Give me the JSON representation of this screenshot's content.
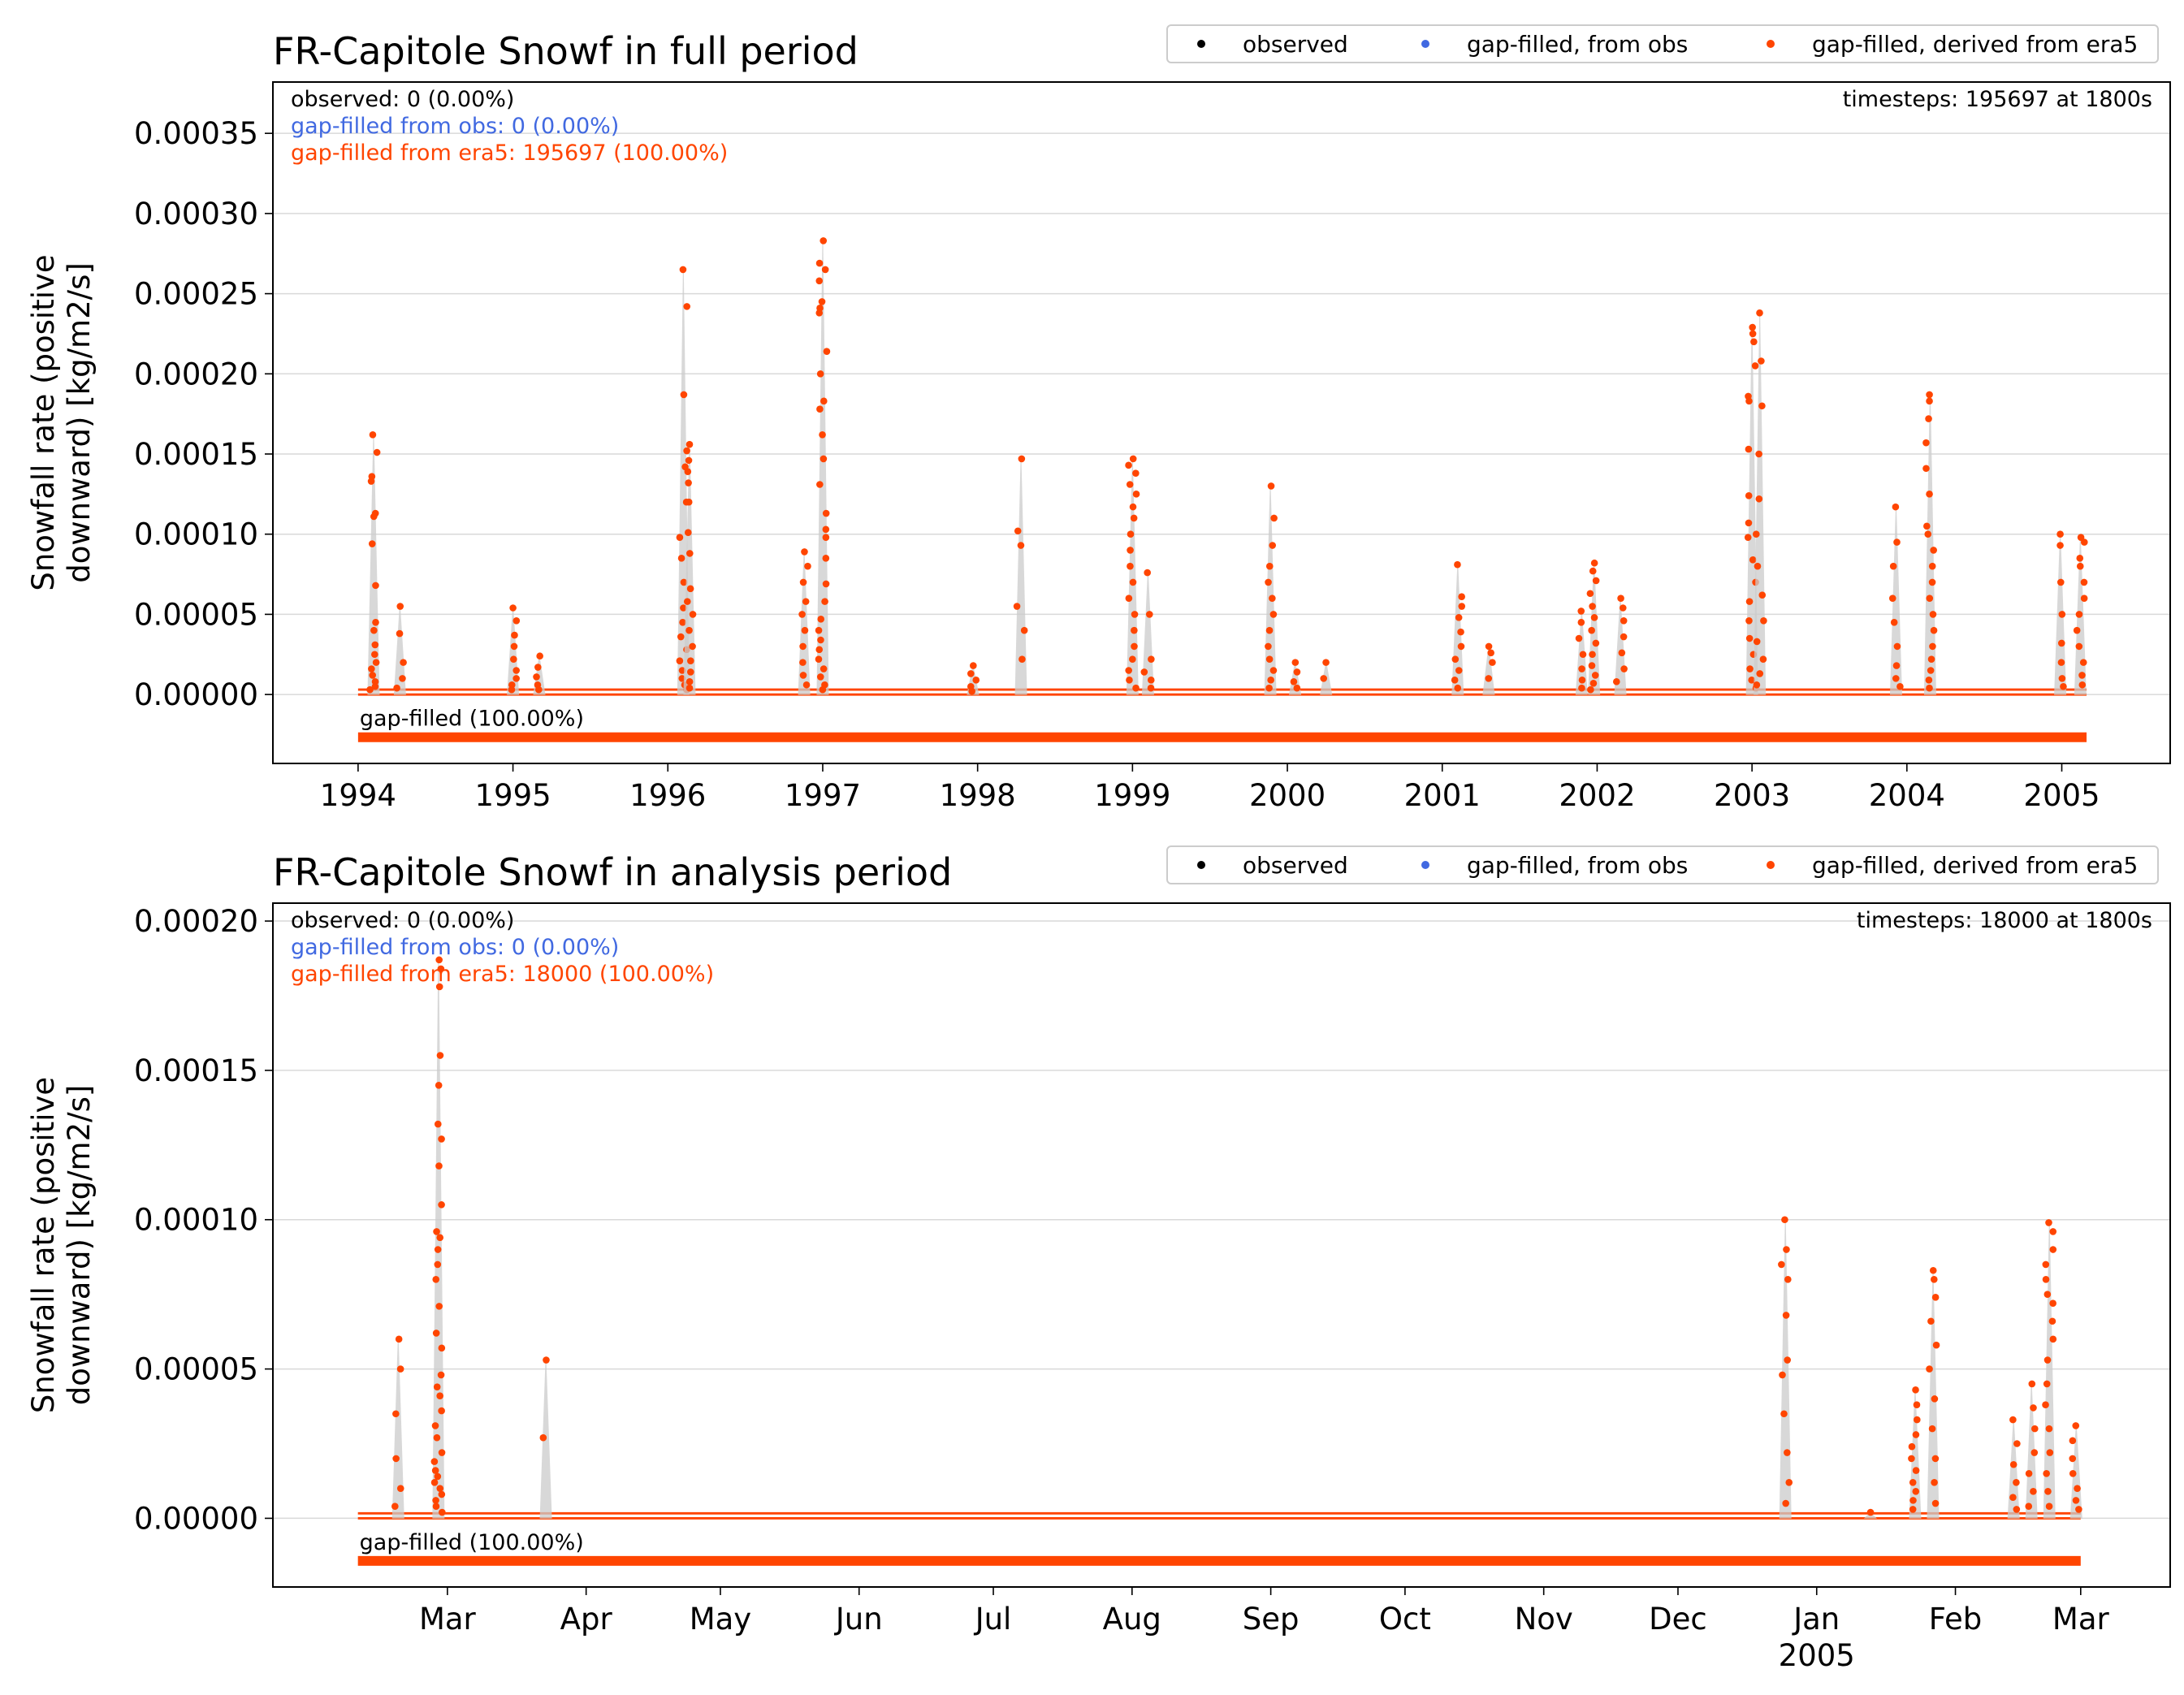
{
  "colors": {
    "observed": "#000000",
    "gapfilled_obs": "#4169e1",
    "gapfilled_era5": "#ff4500",
    "grid": "#d9d9d9",
    "trace": "#cccccc"
  },
  "legend_labels": [
    "observed",
    "gap-filled, from obs",
    "gap-filled, derived from era5"
  ],
  "chart_data": [
    {
      "type": "scatter",
      "title": "FR-Capitole Snowf in full period",
      "ylabel_lines": [
        "Snowfall rate (positive",
        "downward) [kg/m2/s]"
      ],
      "xlabel": "",
      "ylim": [
        -4.3e-05,
        0.000382
      ],
      "yticks": [
        0,
        5e-05,
        0.0001,
        0.00015,
        0.0002,
        0.00025,
        0.0003,
        0.00035
      ],
      "ytick_labels": [
        "0.00000",
        "0.00005",
        "0.00010",
        "0.00015",
        "0.00020",
        "0.00025",
        "0.00030",
        "0.00035"
      ],
      "xlim": [
        1993.45,
        2005.7
      ],
      "xticks": [
        1994,
        1995,
        1996,
        1997,
        1998,
        1999,
        2000,
        2001,
        2002,
        2003,
        2004,
        2005
      ],
      "xtick_labels": [
        "1994",
        "1995",
        "1996",
        "1997",
        "1998",
        "1999",
        "2000",
        "2001",
        "2002",
        "2003",
        "2004",
        "2005"
      ],
      "data_range": [
        1994.0,
        2005.16
      ],
      "grid": "horizontal",
      "legend_placement": "top-right",
      "annotations": {
        "observed": "observed: 0 (0.00%)",
        "gapfilled_obs": "gap-filled from obs: 0 (0.00%)",
        "gapfilled_era5": "gap-filled from era5: 195697 (100.00%)",
        "timesteps": "timesteps: 195697 at 1800s",
        "bar_label": "gap-filled (100.00%)"
      },
      "series": [
        {
          "name": "gap-filled, derived from era5",
          "bursts": [
            {
              "x": 1994.1,
              "values": [
                0.000162,
                0.000151,
                0.000136,
                0.000133,
                0.000113,
                0.000111,
                9.4e-05,
                6.8e-05,
                4.5e-05,
                4e-05,
                3.1e-05,
                2.5e-05,
                2e-05,
                1.6e-05,
                1.2e-05,
                8e-06,
                5e-06,
                3e-06
              ]
            },
            {
              "x": 1994.27,
              "values": [
                5.5e-05,
                3.8e-05,
                2e-05,
                1e-05,
                4e-06
              ]
            },
            {
              "x": 1995.0,
              "values": [
                5.4e-05,
                4.6e-05,
                3.7e-05,
                3e-05,
                2.2e-05,
                1.5e-05,
                1e-05,
                6e-06,
                3e-06
              ]
            },
            {
              "x": 1995.17,
              "values": [
                2.4e-05,
                1.7e-05,
                1.1e-05,
                6e-06,
                3e-06
              ]
            },
            {
              "x": 1996.1,
              "values": [
                0.000265,
                0.000242,
                0.000187,
                0.000142,
                0.00012,
                9.8e-05,
                8.5e-05,
                7e-05,
                5.4e-05,
                4.5e-05,
                3.6e-05,
                2.8e-05,
                2.1e-05,
                1.5e-05,
                1e-05,
                6e-06,
                3e-06
              ]
            },
            {
              "x": 1996.14,
              "values": [
                0.000156,
                0.000152,
                0.000146,
                0.000139,
                0.000132,
                0.00012,
                0.000101,
                8.8e-05,
                6.6e-05,
                5.8e-05,
                5e-05,
                4e-05,
                3e-05,
                2.1e-05,
                1.4e-05,
                8e-06,
                4e-06
              ]
            },
            {
              "x": 1996.88,
              "values": [
                8.9e-05,
                8e-05,
                7e-05,
                5.8e-05,
                5e-05,
                4e-05,
                3e-05,
                2e-05,
                1.2e-05,
                6e-06
              ]
            },
            {
              "x": 1997.0,
              "values": [
                0.000283,
                0.000269,
                0.000265,
                0.000258,
                0.000245,
                0.000241,
                0.000238,
                0.000214,
                0.0002,
                0.000183,
                0.000178,
                0.000162,
                0.000147,
                0.000131,
                0.000113,
                0.000103,
                9.8e-05,
                8.5e-05,
                6.9e-05,
                5.8e-05,
                4.7e-05,
                4e-05,
                3.4e-05,
                2.8e-05,
                2.2e-05,
                1.6e-05,
                1.1e-05,
                6e-06,
                3e-06
              ]
            },
            {
              "x": 1997.97,
              "values": [
                1.8e-05,
                1.3e-05,
                9e-06,
                5e-06,
                2e-06
              ]
            },
            {
              "x": 1998.28,
              "values": [
                0.000147,
                0.000102,
                9.3e-05,
                5.5e-05,
                4e-05,
                2.2e-05
              ]
            },
            {
              "x": 1999.0,
              "values": [
                0.000147,
                0.000143,
                0.000138,
                0.000131,
                0.000125,
                0.000117,
                0.00011,
                0.0001,
                9e-05,
                8e-05,
                7e-05,
                6e-05,
                5e-05,
                4e-05,
                3e-05,
                2.2e-05,
                1.5e-05,
                9e-06,
                4e-06
              ]
            },
            {
              "x": 1999.1,
              "values": [
                7.6e-05,
                5e-05,
                2.2e-05,
                1.4e-05,
                9e-06,
                4e-06
              ]
            },
            {
              "x": 1999.89,
              "values": [
                0.00013,
                0.00011,
                9.3e-05,
                8e-05,
                7e-05,
                6e-05,
                5e-05,
                4e-05,
                3e-05,
                2.2e-05,
                1.5e-05,
                9e-06,
                4e-06
              ]
            },
            {
              "x": 2000.05,
              "values": [
                2e-05,
                1.4e-05,
                8e-06,
                4e-06
              ]
            },
            {
              "x": 2000.25,
              "values": [
                2e-05,
                1e-05
              ]
            },
            {
              "x": 2001.1,
              "values": [
                8.1e-05,
                6.1e-05,
                5.5e-05,
                4.8e-05,
                3.9e-05,
                3e-05,
                2.2e-05,
                1.5e-05,
                9e-06,
                4e-06
              ]
            },
            {
              "x": 2001.3,
              "values": [
                3e-05,
                2.6e-05,
                2e-05,
                1e-05
              ]
            },
            {
              "x": 2001.9,
              "values": [
                5.2e-05,
                4.5e-05,
                3.5e-05,
                2.5e-05,
                1.6e-05,
                9e-06,
                4e-06
              ]
            },
            {
              "x": 2001.98,
              "values": [
                8.2e-05,
                7.7e-05,
                7.1e-05,
                6.3e-05,
                5.5e-05,
                4.8e-05,
                4e-05,
                3.2e-05,
                2.5e-05,
                1.8e-05,
                1.2e-05,
                7e-06,
                3e-06
              ]
            },
            {
              "x": 2002.15,
              "values": [
                6e-05,
                5.4e-05,
                4.6e-05,
                3.6e-05,
                2.6e-05,
                1.6e-05,
                8e-06
              ]
            },
            {
              "x": 2003.0,
              "values": [
                0.000229,
                0.000225,
                0.00022,
                0.000205,
                0.000186,
                0.000183,
                0.000153,
                0.000124,
                0.000107,
                9.8e-05,
                8.4e-05,
                7e-05,
                5.8e-05,
                4.6e-05,
                3.5e-05,
                2.5e-05,
                1.6e-05,
                9e-06,
                4e-06
              ]
            },
            {
              "x": 2003.05,
              "values": [
                0.000238,
                0.000208,
                0.00018,
                0.00015,
                0.000122,
                0.0001,
                8e-05,
                6.2e-05,
                4.6e-05,
                3.3e-05,
                2.2e-05,
                1.3e-05,
                6e-06
              ]
            },
            {
              "x": 2003.93,
              "values": [
                0.000117,
                9.5e-05,
                8e-05,
                6e-05,
                4.5e-05,
                3e-05,
                1.8e-05,
                1e-05,
                5e-06
              ]
            },
            {
              "x": 2004.15,
              "values": [
                0.000187,
                0.000183,
                0.000172,
                0.000157,
                0.000141,
                0.000125,
                0.000105,
                0.0001,
                9e-05,
                8e-05,
                7e-05,
                6e-05,
                5e-05,
                4e-05,
                3e-05,
                2.2e-05,
                1.5e-05,
                9e-06,
                4e-06
              ]
            },
            {
              "x": 2004.99,
              "values": [
                0.0001,
                9.3e-05,
                7e-05,
                5e-05,
                3.2e-05,
                2e-05,
                1e-05,
                5e-06
              ]
            },
            {
              "x": 2005.12,
              "values": [
                9.8e-05,
                9.5e-05,
                8.5e-05,
                8e-05,
                7e-05,
                6e-05,
                5e-05,
                4e-05,
                3e-05,
                2e-05,
                1.2e-05,
                6e-06
              ]
            }
          ]
        }
      ]
    },
    {
      "type": "scatter",
      "title": "FR-Capitole Snowf in analysis period",
      "ylabel_lines": [
        "Snowfall rate (positive",
        "downward) [kg/m2/s]"
      ],
      "xlabel": "",
      "ylim": [
        -2.3e-05,
        0.000206
      ],
      "yticks": [
        0,
        5e-05,
        0.0001,
        0.00015,
        0.0002
      ],
      "ytick_labels": [
        "0.00000",
        "0.00005",
        "0.00010",
        "0.00015",
        "0.00020"
      ],
      "xlim": [
        "2004-01-22",
        "2005-03-21"
      ],
      "xticks": [
        "2004-03-01",
        "2004-04-01",
        "2004-05-01",
        "2004-06-01",
        "2004-07-01",
        "2004-08-01",
        "2004-09-01",
        "2004-10-01",
        "2004-11-01",
        "2004-12-01",
        "2005-01-01",
        "2005-02-01",
        "2005-03-01"
      ],
      "xtick_labels": [
        "Mar",
        "Apr",
        "May",
        "Jun",
        "Jul",
        "Aug",
        "Sep",
        "Oct",
        "Nov",
        "Dec",
        "Jan",
        "Feb",
        "Mar"
      ],
      "xtick_sublabel": {
        "index": 10,
        "text": "2005"
      },
      "data_range": [
        "2004-02-10",
        "2005-03-01"
      ],
      "grid": "horizontal",
      "legend_placement": "top-right",
      "annotations": {
        "observed": "observed: 0 (0.00%)",
        "gapfilled_obs": "gap-filled from obs: 0 (0.00%)",
        "gapfilled_era5": "gap-filled from era5: 18000 (100.00%)",
        "timesteps": "timesteps: 18000 at 1800s",
        "bar_label": "gap-filled (100.00%)"
      },
      "series": [
        {
          "name": "gap-filled, derived from era5",
          "bursts": [
            {
              "x": "2004-02-19",
              "values": [
                6e-05,
                5e-05,
                3.5e-05,
                2e-05,
                1e-05,
                4e-06
              ]
            },
            {
              "x": "2004-02-28",
              "values": [
                0.000187,
                0.000184,
                0.000178,
                0.000155,
                0.000145,
                0.000132,
                0.000127,
                0.000118,
                0.000105,
                9.6e-05,
                9.4e-05,
                9e-05,
                8.5e-05,
                8e-05,
                7.1e-05,
                6.2e-05,
                5.7e-05,
                4.8e-05,
                4.4e-05,
                4.1e-05,
                3.6e-05,
                3.1e-05,
                2.7e-05,
                2.2e-05,
                1.9e-05,
                1.6e-05,
                1.4e-05,
                1.2e-05,
                1e-05,
                8e-06,
                6e-06,
                4e-06,
                2e-06
              ]
            },
            {
              "x": "2004-03-23",
              "values": [
                5.3e-05,
                2.7e-05
              ]
            },
            {
              "x": "2004-12-25",
              "values": [
                0.0001,
                9e-05,
                8.5e-05,
                8e-05,
                6.8e-05,
                5.3e-05,
                4.8e-05,
                3.5e-05,
                2.2e-05,
                1.2e-05,
                5e-06
              ]
            },
            {
              "x": "2005-01-13",
              "values": [
                2e-06
              ]
            },
            {
              "x": "2005-01-23",
              "values": [
                4.3e-05,
                3.8e-05,
                3.3e-05,
                2.8e-05,
                2.4e-05,
                2e-05,
                1.6e-05,
                1.2e-05,
                9e-06,
                6e-06,
                3e-06
              ]
            },
            {
              "x": "2005-01-27",
              "values": [
                8.3e-05,
                8e-05,
                7.4e-05,
                6.6e-05,
                5.8e-05,
                5e-05,
                4e-05,
                3e-05,
                2e-05,
                1.2e-05,
                5e-06
              ]
            },
            {
              "x": "2005-02-14",
              "values": [
                3.3e-05,
                2.5e-05,
                1.8e-05,
                1.2e-05,
                7e-06,
                3e-06
              ]
            },
            {
              "x": "2005-02-18",
              "values": [
                4.5e-05,
                3.7e-05,
                3e-05,
                2.2e-05,
                1.5e-05,
                9e-06,
                4e-06
              ]
            },
            {
              "x": "2005-02-22",
              "values": [
                9.9e-05,
                9.6e-05,
                9e-05,
                8.5e-05,
                8e-05,
                7.5e-05,
                7.2e-05,
                6.6e-05,
                6e-05,
                5.3e-05,
                4.5e-05,
                3.8e-05,
                3e-05,
                2.2e-05,
                1.5e-05,
                9e-06,
                4e-06
              ]
            },
            {
              "x": "2005-02-28",
              "values": [
                3.1e-05,
                2.6e-05,
                2e-05,
                1.5e-05,
                1e-05,
                6e-06,
                3e-06
              ]
            }
          ]
        }
      ]
    }
  ]
}
